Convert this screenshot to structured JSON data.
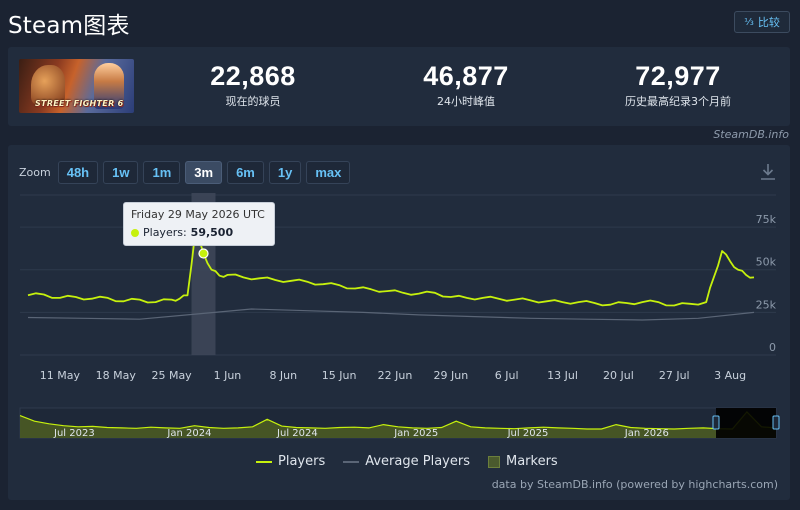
{
  "header": {
    "title": "Steam图表",
    "compare_label": "比较",
    "compare_icon": "sort-numeric-icon"
  },
  "game": {
    "thumb_text": "STREET FIGHTER 6"
  },
  "stats": [
    {
      "value": "22,868",
      "label": "现在的球员"
    },
    {
      "value": "46,877",
      "label": "24小时峰值"
    },
    {
      "value": "72,977",
      "label": "历史最高纪录3个月前"
    }
  ],
  "credit_top": "SteamDB.info",
  "zoom": {
    "label": "Zoom",
    "options": [
      "48h",
      "1w",
      "1m",
      "3m",
      "6m",
      "1y",
      "max"
    ],
    "active": "3m"
  },
  "tooltip": {
    "date": "Friday 29 May 2026 UTC",
    "series": "Players:",
    "value": "59,500"
  },
  "legend": [
    {
      "name": "Players",
      "color": "#c6f10d"
    },
    {
      "name": "Average Players",
      "color": "#5a6576"
    },
    {
      "name": "Markers",
      "color": "#4a5a2e"
    }
  ],
  "credit_bottom": "data by SteamDB.info (powered by highcharts.com)",
  "colors": {
    "background": "#1b2332",
    "panel": "#212c3d",
    "accent": "#67c1f5",
    "players_line": "#c6f10d"
  },
  "chart_data": {
    "type": "line",
    "x_ticks": [
      "11 May",
      "18 May",
      "25 May",
      "1 Jun",
      "8 Jun",
      "15 Jun",
      "22 Jun",
      "29 Jun",
      "6 Jul",
      "13 Jul",
      "20 Jul",
      "27 Jul",
      "3 Aug"
    ],
    "y_ticks": [
      "0",
      "25k",
      "50k",
      "75k"
    ],
    "ylim": [
      0,
      75000
    ],
    "highlight": {
      "x": "29 May 2026",
      "value": 59500
    },
    "series": [
      {
        "name": "Players",
        "color": "#c6f10d",
        "x": [
          "2026-05-07",
          "2026-05-09",
          "2026-05-11",
          "2026-05-13",
          "2026-05-15",
          "2026-05-17",
          "2026-05-19",
          "2026-05-21",
          "2026-05-23",
          "2026-05-25",
          "2026-05-26",
          "2026-05-27",
          "2026-05-28",
          "2026-05-29",
          "2026-05-30",
          "2026-05-31",
          "2026-06-01",
          "2026-06-03",
          "2026-06-05",
          "2026-06-07",
          "2026-06-09",
          "2026-06-11",
          "2026-06-13",
          "2026-06-15",
          "2026-06-17",
          "2026-06-19",
          "2026-06-21",
          "2026-06-23",
          "2026-06-25",
          "2026-06-27",
          "2026-06-29",
          "2026-07-01",
          "2026-07-03",
          "2026-07-05",
          "2026-07-07",
          "2026-07-09",
          "2026-07-11",
          "2026-07-13",
          "2026-07-15",
          "2026-07-17",
          "2026-07-19",
          "2026-07-21",
          "2026-07-23",
          "2026-07-25",
          "2026-07-27",
          "2026-07-29",
          "2026-07-31",
          "2026-08-01",
          "2026-08-02",
          "2026-08-03",
          "2026-08-04",
          "2026-08-05",
          "2026-08-06"
        ],
        "values": [
          35000,
          35500,
          33500,
          34000,
          33000,
          33500,
          31500,
          32500,
          31000,
          32500,
          33000,
          35000,
          72977,
          59500,
          50000,
          46500,
          47000,
          45500,
          45000,
          44000,
          43500,
          43000,
          41500,
          41000,
          39000,
          38500,
          37500,
          36500,
          36000,
          36500,
          34000,
          33500,
          33500,
          33000,
          32500,
          32000,
          31500,
          31000,
          31000,
          30500,
          29500,
          30500,
          31000,
          31000,
          29000,
          30000,
          31000,
          46000,
          61000,
          55000,
          50000,
          47000,
          45500
        ]
      },
      {
        "name": "Average Players",
        "color": "#5a6576",
        "x": [
          "2026-05-07",
          "2026-05-14",
          "2026-05-21",
          "2026-05-28",
          "2026-06-04",
          "2026-06-11",
          "2026-06-18",
          "2026-06-25",
          "2026-07-02",
          "2026-07-09",
          "2026-07-16",
          "2026-07-23",
          "2026-07-30",
          "2026-08-06"
        ],
        "values": [
          22000,
          21500,
          21000,
          24000,
          27000,
          26000,
          25000,
          23500,
          22500,
          21500,
          21000,
          20500,
          21500,
          25000
        ]
      }
    ],
    "navigator": {
      "x_ticks": [
        "Jul 2023",
        "Jan 2024",
        "Jul 2024",
        "Jan 2025",
        "Jul 2025",
        "Jan 2026"
      ],
      "values": [
        60000,
        45000,
        38000,
        33000,
        30000,
        31000,
        28000,
        27000,
        26000,
        29000,
        27000,
        26000,
        33000,
        28000,
        26000,
        27000,
        30000,
        50000,
        32000,
        28000,
        27000,
        26000,
        28000,
        29000,
        27000,
        36000,
        30000,
        27000,
        26000,
        28000,
        45000,
        30000,
        27000,
        26000,
        25000,
        27000,
        29000,
        27000,
        26000,
        24000,
        24000,
        36000,
        28000,
        26000,
        25000,
        24000,
        26000,
        27000,
        25000,
        24000,
        70000,
        30000,
        27000
      ]
    }
  }
}
